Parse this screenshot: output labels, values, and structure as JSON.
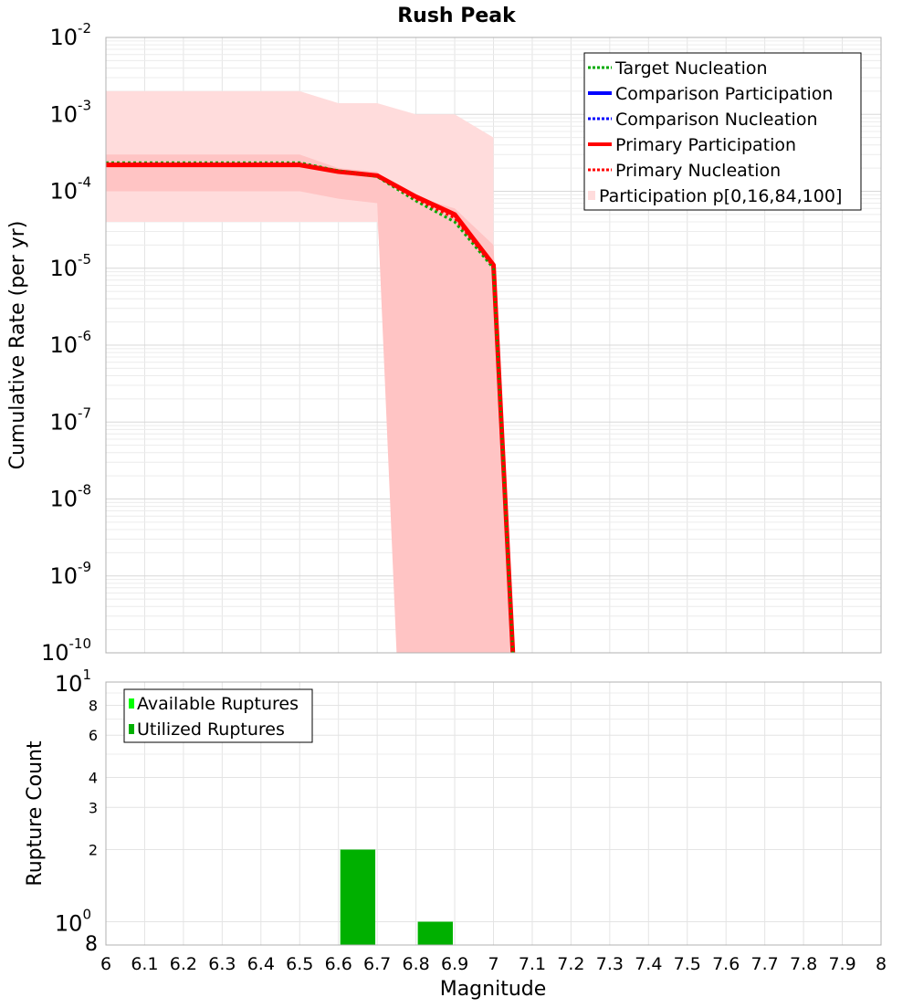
{
  "chart_data": [
    {
      "type": "line",
      "title": "Rush Peak",
      "xlabel": "",
      "ylabel": "Cumulative Rate (per yr)",
      "xlim": [
        6,
        8
      ],
      "ylim": [
        1e-10,
        0.01
      ],
      "y_scale": "log",
      "grid": true,
      "legend_position": "top-right",
      "y_ticks": [
        {
          "base": "10",
          "exp": "-2",
          "value": 0.01
        },
        {
          "base": "10",
          "exp": "-3",
          "value": 0.001
        },
        {
          "base": "10",
          "exp": "-4",
          "value": 0.0001
        },
        {
          "base": "10",
          "exp": "-5",
          "value": 1e-05
        },
        {
          "base": "10",
          "exp": "-6",
          "value": 1e-06
        },
        {
          "base": "10",
          "exp": "-7",
          "value": 1e-07
        },
        {
          "base": "10",
          "exp": "-8",
          "value": 1e-08
        },
        {
          "base": "10",
          "exp": "-9",
          "value": 1e-09
        },
        {
          "base": "10",
          "exp": "-10",
          "value": 1e-10
        }
      ],
      "bands": [
        {
          "name": "Participation p[0,16,84,100]",
          "color": "#ffdcdc",
          "x": [
            6.0,
            6.5,
            6.6,
            6.7,
            6.8,
            6.9,
            7.0
          ],
          "lower": [
            4e-05,
            4e-05,
            4e-05,
            4e-05,
            1e-10,
            1e-10,
            1e-10
          ],
          "upper": [
            0.002,
            0.002,
            0.0014,
            0.0014,
            0.001,
            0.001,
            0.0005
          ]
        },
        {
          "name": "",
          "color": "#ffc4c4",
          "x": [
            6.0,
            6.5,
            6.6,
            6.7,
            6.75,
            6.9,
            7.0,
            7.05
          ],
          "lower": [
            0.0001,
            0.0001,
            8e-05,
            7e-05,
            1e-10,
            1e-10,
            1e-10,
            1e-10
          ],
          "upper": [
            0.0003,
            0.0003,
            0.0002,
            0.00018,
            0.0001,
            6e-05,
            2e-05,
            1e-10
          ]
        }
      ],
      "series": [
        {
          "name": "Primary Participation",
          "color": "#ff0000",
          "style": "solid",
          "x": [
            6.0,
            6.5,
            6.6,
            6.7,
            6.8,
            6.9,
            7.0,
            7.05
          ],
          "y": [
            0.00022,
            0.00022,
            0.00018,
            0.00016,
            8.5e-05,
            5e-05,
            1.1e-05,
            1e-10
          ]
        },
        {
          "name": "Target Nucleation",
          "color": "#00aa00",
          "style": "dotted",
          "x": [
            6.0,
            6.5,
            6.6,
            6.7,
            6.8,
            6.9,
            7.0,
            7.05
          ],
          "y": [
            0.000235,
            0.000235,
            0.000185,
            0.000155,
            7.5e-05,
            4e-05,
            1e-05,
            1e-10
          ]
        },
        {
          "name": "Primary Nucleation",
          "color": "#ff0000",
          "style": "dotted",
          "x": [
            6.0,
            6.5,
            6.6,
            6.7,
            6.8,
            6.9,
            7.0,
            7.05
          ],
          "y": [
            0.000228,
            0.000228,
            0.000182,
            0.000157,
            8e-05,
            4.5e-05,
            1.05e-05,
            1e-10
          ]
        },
        {
          "name": "Comparison Participation",
          "color": "#0000ff",
          "style": "solid",
          "x": [],
          "y": []
        },
        {
          "name": "Comparison Nucleation",
          "color": "#0000ff",
          "style": "dotted",
          "x": [],
          "y": []
        }
      ],
      "legend": [
        {
          "label": "Target Nucleation",
          "color": "#00aa00",
          "style": "dotted"
        },
        {
          "label": "Comparison Participation",
          "color": "#0000ff",
          "style": "solid"
        },
        {
          "label": "Comparison Nucleation",
          "color": "#0000ff",
          "style": "dotted"
        },
        {
          "label": "Primary Participation",
          "color": "#ff0000",
          "style": "solid"
        },
        {
          "label": "Primary Nucleation",
          "color": "#ff0000",
          "style": "dotted"
        },
        {
          "label": "Participation p[0,16,84,100]",
          "color": "#ffdcdc",
          "style": "box"
        }
      ]
    },
    {
      "type": "bar",
      "title": "",
      "xlabel": "Magnitude",
      "ylabel": "Rupture Count",
      "xlim": [
        6,
        8
      ],
      "ylim": [
        0.8,
        10
      ],
      "y_scale": "log",
      "grid": true,
      "legend_position": "top-left",
      "x_ticks": [
        "6",
        "6.1",
        "6.2",
        "6.3",
        "6.4",
        "6.5",
        "6.6",
        "6.7",
        "6.8",
        "6.9",
        "7",
        "7.1",
        "7.2",
        "7.3",
        "7.4",
        "7.5",
        "7.6",
        "7.7",
        "7.8",
        "7.9",
        "8"
      ],
      "y_ticks": [
        {
          "label": "10",
          "exp": "1",
          "value": 10
        },
        {
          "label": "8",
          "exp": "",
          "value": 8
        },
        {
          "label": "6",
          "exp": "",
          "value": 6
        },
        {
          "label": "4",
          "exp": "",
          "value": 4
        },
        {
          "label": "3",
          "exp": "",
          "value": 3
        },
        {
          "label": "2",
          "exp": "",
          "value": 2
        },
        {
          "label": "10",
          "exp": "0",
          "value": 1
        },
        {
          "label": "8",
          "exp": "",
          "value": 0.8
        }
      ],
      "bar_width": 0.09,
      "series": [
        {
          "name": "Available Ruptures",
          "color": "#00ff00",
          "x": [
            6.65,
            6.85
          ],
          "values": [
            2,
            1
          ]
        },
        {
          "name": "Utilized Ruptures",
          "color": "#00b000",
          "x": [
            6.65,
            6.85
          ],
          "values": [
            2,
            1
          ]
        }
      ]
    }
  ]
}
